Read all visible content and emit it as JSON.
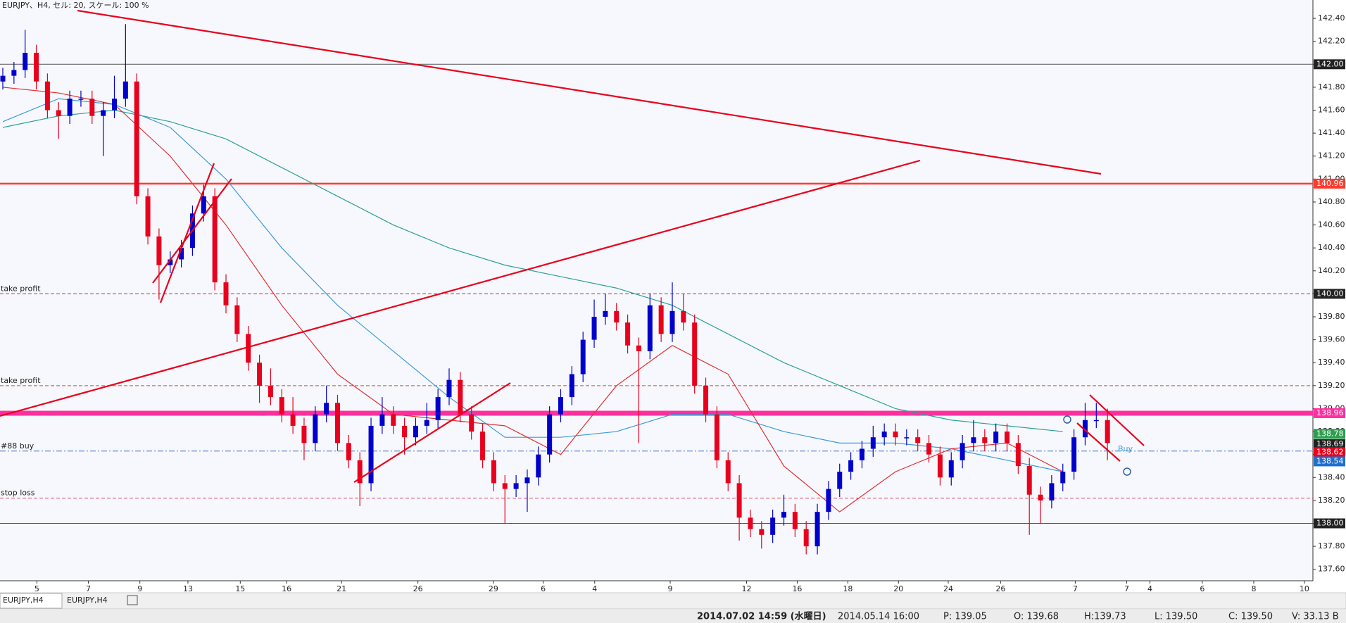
{
  "chart_data": {
    "type": "candlestick",
    "title": "EURJPY、H4, セル: 20, スケール: 100 %",
    "ylim": [
      137.5,
      142.56
    ],
    "yticks": [
      {
        "value": 137.6,
        "label": "137.60"
      },
      {
        "value": 137.8,
        "label": "137.80"
      },
      {
        "value": 138.0,
        "label": "138.00"
      },
      {
        "value": 138.2,
        "label": "138.20"
      },
      {
        "value": 138.4,
        "label": "138.40"
      },
      {
        "value": 138.6,
        "label": "138.60"
      },
      {
        "value": 138.8,
        "label": "138.80"
      },
      {
        "value": 139.0,
        "label": "139.00"
      },
      {
        "value": 139.2,
        "label": "139.20"
      },
      {
        "value": 139.4,
        "label": "139.40"
      },
      {
        "value": 139.6,
        "label": "139.60"
      },
      {
        "value": 139.8,
        "label": "139.80"
      },
      {
        "value": 140.0,
        "label": "140.00"
      },
      {
        "value": 140.2,
        "label": "140.20"
      },
      {
        "value": 140.4,
        "label": "140.40"
      },
      {
        "value": 140.6,
        "label": "140.60"
      },
      {
        "value": 140.8,
        "label": "140.80"
      },
      {
        "value": 141.0,
        "label": "141.00"
      },
      {
        "value": 141.2,
        "label": "141.20"
      },
      {
        "value": 141.4,
        "label": "141.40"
      },
      {
        "value": 141.6,
        "label": "141.60"
      },
      {
        "value": 141.8,
        "label": "141.80"
      },
      {
        "value": 142.0,
        "label": "142.00"
      },
      {
        "value": 142.2,
        "label": "142.20"
      },
      {
        "value": 142.4,
        "label": "142.40"
      }
    ],
    "xtick_labels": [
      "5",
      "7",
      "9",
      "13",
      "15",
      "16",
      "21",
      "26",
      "29",
      "6",
      "4",
      "9",
      "12",
      "16",
      "18",
      "20",
      "24",
      "26",
      "7",
      "7",
      "4",
      "6",
      "8",
      "10"
    ],
    "bull_color": "#0000cd",
    "bear_color": "#e8001c",
    "candles": {
      "open": [
        141.85,
        141.9,
        141.95,
        142.1,
        141.85,
        141.6,
        141.55,
        141.7,
        141.7,
        141.55,
        141.6,
        141.7,
        141.85,
        140.85,
        140.5,
        140.25,
        140.3,
        140.4,
        140.7,
        140.85,
        140.1,
        139.9,
        139.65,
        139.4,
        139.2,
        139.1,
        138.95,
        138.85,
        138.7,
        138.95,
        139.05,
        138.7,
        138.55,
        138.35,
        138.85,
        138.95,
        138.85,
        138.75,
        138.85,
        138.9,
        139.1,
        139.25,
        138.95,
        138.8,
        138.55,
        138.35,
        138.3,
        138.35,
        138.4,
        138.6,
        138.95,
        139.1,
        139.3,
        139.6,
        139.8,
        139.85,
        139.75,
        139.55,
        139.5,
        139.9,
        139.65,
        139.85,
        139.75,
        139.2,
        138.95,
        138.55,
        138.35,
        138.05,
        137.95,
        137.9,
        138.05,
        138.1,
        137.95,
        137.8,
        138.1,
        138.3,
        138.45,
        138.55,
        138.65,
        138.75,
        138.8,
        138.75,
        138.75,
        138.7,
        138.6,
        138.4,
        138.55,
        138.7,
        138.75,
        138.7,
        138.8,
        138.7,
        138.5,
        138.25,
        138.2,
        138.35,
        138.45,
        138.75,
        138.9,
        138.9
      ],
      "high": [
        141.97,
        142.02,
        142.3,
        142.17,
        141.92,
        141.67,
        141.77,
        141.77,
        141.77,
        141.67,
        141.9,
        142.35,
        141.92,
        140.92,
        140.57,
        140.37,
        140.47,
        140.77,
        140.95,
        140.92,
        140.17,
        139.97,
        139.72,
        139.47,
        139.35,
        139.17,
        139.1,
        138.92,
        139.02,
        139.2,
        139.12,
        138.77,
        138.62,
        138.92,
        139.1,
        139.02,
        138.92,
        138.92,
        139.05,
        139.17,
        139.35,
        139.32,
        139.02,
        138.87,
        138.62,
        138.42,
        138.42,
        138.47,
        138.67,
        139.02,
        139.17,
        139.37,
        139.67,
        139.95,
        140.0,
        139.92,
        139.82,
        139.62,
        140.0,
        139.97,
        140.1,
        140.0,
        139.82,
        139.27,
        139.02,
        138.62,
        138.42,
        138.12,
        138.02,
        138.12,
        138.25,
        138.17,
        138.02,
        138.17,
        138.37,
        138.52,
        138.62,
        138.72,
        138.85,
        138.87,
        138.87,
        138.82,
        138.82,
        138.77,
        138.67,
        138.62,
        138.77,
        138.9,
        138.82,
        138.87,
        138.87,
        138.77,
        138.57,
        138.32,
        138.42,
        138.52,
        138.82,
        139.05,
        139.05,
        139.0
      ],
      "low": [
        141.78,
        141.83,
        141.88,
        141.78,
        141.53,
        141.35,
        141.48,
        141.63,
        141.48,
        141.2,
        141.53,
        141.63,
        140.78,
        140.43,
        139.95,
        140.18,
        140.23,
        140.33,
        140.63,
        140.03,
        139.83,
        139.58,
        139.33,
        139.05,
        139.03,
        138.88,
        138.78,
        138.55,
        138.63,
        138.88,
        138.63,
        138.48,
        138.15,
        138.28,
        138.78,
        138.78,
        138.6,
        138.68,
        138.78,
        138.83,
        139.03,
        138.88,
        138.73,
        138.48,
        138.28,
        138.0,
        138.23,
        138.1,
        138.33,
        138.53,
        138.88,
        139.03,
        139.23,
        139.53,
        139.73,
        139.68,
        139.48,
        138.7,
        139.43,
        139.58,
        139.58,
        139.68,
        139.13,
        138.88,
        138.48,
        138.28,
        137.85,
        137.88,
        137.78,
        137.83,
        137.98,
        137.88,
        137.73,
        137.73,
        138.03,
        138.23,
        138.38,
        138.48,
        138.58,
        138.68,
        138.68,
        138.68,
        138.63,
        138.53,
        138.33,
        138.33,
        138.48,
        138.63,
        138.63,
        138.63,
        138.63,
        138.43,
        137.9,
        138.0,
        138.13,
        138.28,
        138.38,
        138.68,
        138.83,
        138.55
      ],
      "close": [
        141.9,
        141.95,
        142.1,
        141.85,
        141.6,
        141.55,
        141.7,
        141.7,
        141.55,
        141.6,
        141.7,
        141.85,
        140.85,
        140.5,
        140.25,
        140.3,
        140.4,
        140.7,
        140.85,
        140.1,
        139.9,
        139.65,
        139.4,
        139.2,
        139.1,
        138.95,
        138.85,
        138.7,
        138.95,
        139.05,
        138.7,
        138.55,
        138.35,
        138.85,
        138.95,
        138.85,
        138.75,
        138.85,
        138.9,
        139.1,
        139.25,
        138.95,
        138.8,
        138.55,
        138.35,
        138.3,
        138.35,
        138.4,
        138.6,
        138.95,
        139.1,
        139.3,
        139.6,
        139.8,
        139.85,
        139.75,
        139.55,
        139.5,
        139.9,
        139.65,
        139.85,
        139.75,
        139.2,
        138.95,
        138.55,
        138.35,
        138.05,
        137.95,
        137.9,
        138.05,
        138.1,
        137.95,
        137.8,
        138.1,
        138.3,
        138.45,
        138.55,
        138.65,
        138.75,
        138.8,
        138.75,
        138.75,
        138.7,
        138.6,
        138.4,
        138.55,
        138.7,
        138.75,
        138.7,
        138.8,
        138.7,
        138.5,
        138.25,
        138.2,
        138.35,
        138.45,
        138.75,
        138.9,
        138.9,
        138.7
      ]
    },
    "ma_x": [
      0,
      5,
      10,
      15,
      20,
      25,
      30,
      35,
      40,
      45,
      50,
      55,
      60,
      65,
      70,
      75,
      80,
      85,
      90,
      95
    ],
    "series": [
      {
        "color": "#2aa198",
        "values": [
          141.45,
          141.55,
          141.6,
          141.5,
          141.35,
          141.1,
          140.85,
          140.6,
          140.4,
          140.25,
          140.15,
          140.05,
          139.9,
          139.65,
          139.4,
          139.2,
          139.0,
          138.9,
          138.85,
          138.8
        ]
      },
      {
        "color": "#3a9ad9",
        "values": [
          141.5,
          141.7,
          141.65,
          141.45,
          141.0,
          140.4,
          139.9,
          139.5,
          139.1,
          138.75,
          138.75,
          138.8,
          138.95,
          138.95,
          138.8,
          138.7,
          138.7,
          138.65,
          138.55,
          138.45
        ]
      },
      {
        "color": "#e03030",
        "values": [
          141.8,
          141.75,
          141.65,
          141.2,
          140.6,
          139.9,
          139.3,
          138.95,
          138.9,
          138.85,
          138.6,
          139.2,
          139.55,
          139.3,
          138.5,
          138.1,
          138.45,
          138.65,
          138.7,
          138.45
        ]
      }
    ],
    "levels": [
      {
        "value": 142.0,
        "color": "#555555"
      },
      {
        "value": 140.96,
        "color": "#ff3b2f"
      },
      {
        "value": 140.0,
        "color": "#b03040",
        "label": "take profit"
      },
      {
        "value": 139.2,
        "color": "#e04050",
        "label": "take profit"
      },
      {
        "value": 138.96,
        "color": "#ff2fa0"
      },
      {
        "value": 138.63,
        "color": "#3a70c0",
        "label": "#88 buy"
      },
      {
        "value": 138.22,
        "color": "#e04050",
        "label": "stop loss"
      },
      {
        "value": 138.0,
        "color": "#555555"
      }
    ],
    "price_tags": [
      {
        "value": 142.0,
        "label": "142.00",
        "color": "#222222"
      },
      {
        "value": 140.96,
        "label": "140.96",
        "color": "#ff3b2f"
      },
      {
        "value": 140.0,
        "label": "140.00",
        "color": "#222222"
      },
      {
        "value": 138.96,
        "label": "138.96",
        "color": "#ff2fa0"
      },
      {
        "value": 138.78,
        "label": "138.78",
        "color": "#2e9e50"
      },
      {
        "value": 138.69,
        "label": "138.69",
        "color": "#222222"
      },
      {
        "value": 138.62,
        "label": "138.62",
        "color": "#e8001c"
      },
      {
        "value": 138.54,
        "label": "138.54",
        "color": "#1f6fd0"
      },
      {
        "value": 138.0,
        "label": "138.00",
        "color": "#222222"
      }
    ],
    "order_label": "Buy",
    "tabs": [
      "EURJPY,H4",
      "EURJPY,H4"
    ],
    "status": [
      "2014.07.02 14:59 (水曜日)",
      "2014.05.14 16:00",
      "P: 139.05",
      "O: 139.68",
      "H:139.73",
      "L: 139.50",
      "C: 139.50",
      "V: 33.13 B"
    ]
  }
}
